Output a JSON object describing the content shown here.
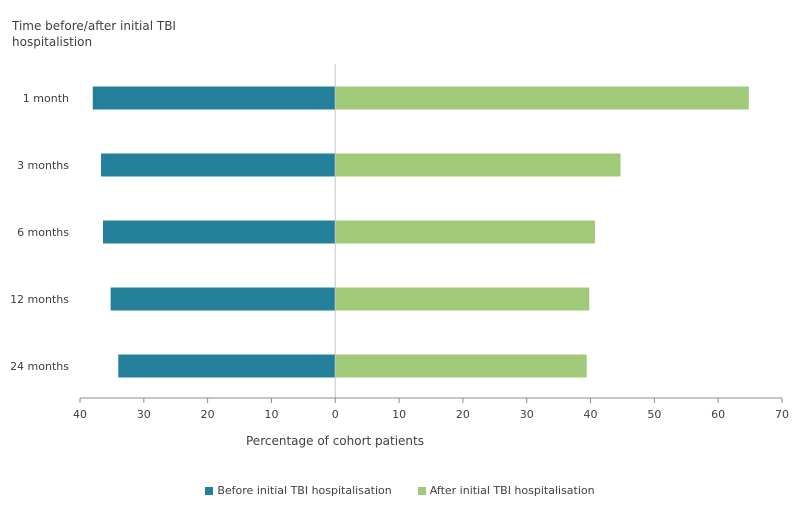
{
  "chart_data": {
    "type": "bar",
    "orientation": "horizontal-diverging",
    "ylabel": "Time before/after initial TBI hospitalistion",
    "xlabel": "Percentage of cohort patients",
    "categories": [
      "1 month",
      "3 months",
      "6 months",
      "12 months",
      "24 months"
    ],
    "series": [
      {
        "name": "Before initial TBI hospitalisation",
        "color": "#237f9a",
        "direction": "left",
        "values": [
          38,
          36.7,
          36.4,
          35.2,
          34
        ]
      },
      {
        "name": "After initial TBI hospitalisation",
        "color": "#a1c97a",
        "direction": "right",
        "values": [
          64.8,
          44.7,
          40.7,
          39.8,
          39.4
        ]
      }
    ],
    "xlim": [
      -40,
      70
    ],
    "xticks": [
      -40,
      -30,
      -20,
      -10,
      0,
      10,
      20,
      30,
      40,
      50,
      60,
      70
    ],
    "xtick_labels": [
      "40",
      "30",
      "20",
      "10",
      "0",
      "10",
      "20",
      "30",
      "40",
      "50",
      "60",
      "70"
    ],
    "grid": false,
    "legend_position": "bottom"
  }
}
